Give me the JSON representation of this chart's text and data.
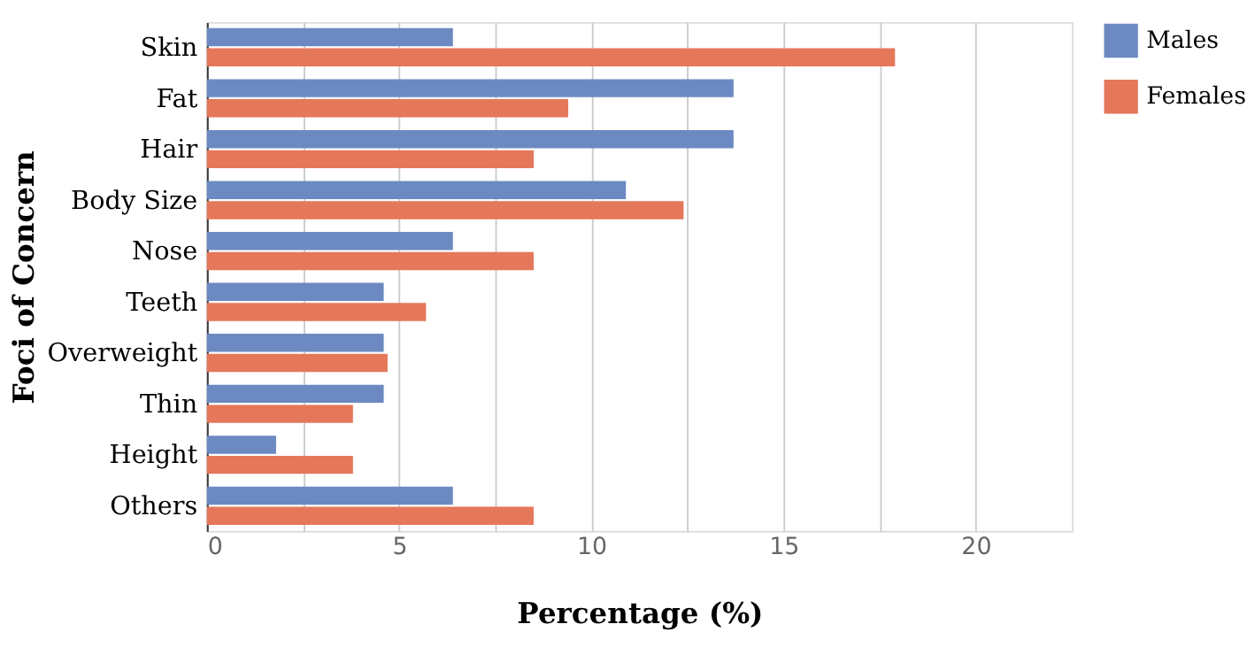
{
  "chart_data": {
    "type": "bar",
    "orientation": "horizontal",
    "xlabel": "Percentage (%)",
    "ylabel": "Foci of Concern",
    "categories": [
      "Skin",
      "Fat",
      "Hair",
      "Body Size",
      "Nose",
      "Teeth",
      "Overweight",
      "Thin",
      "Height",
      "Others"
    ],
    "series": [
      {
        "name": "Males",
        "color": "#6c8ac1",
        "values": [
          6.4,
          13.7,
          13.7,
          10.9,
          6.4,
          4.6,
          4.6,
          4.6,
          1.8,
          6.4
        ]
      },
      {
        "name": "Females",
        "color": "#e5775a",
        "values": [
          17.9,
          9.4,
          8.5,
          12.4,
          8.5,
          5.7,
          4.7,
          3.8,
          3.8,
          8.5
        ]
      }
    ],
    "xlim": [
      0,
      22.5
    ],
    "xticks": [
      0,
      {
        "value": 2.5,
        "label": null
      },
      5,
      {
        "value": 7.5,
        "label": null
      },
      10,
      {
        "value": 12.5,
        "label": null
      },
      15,
      {
        "value": 17.5,
        "label": null
      },
      20
    ],
    "grid": "x",
    "legend": "top right"
  }
}
